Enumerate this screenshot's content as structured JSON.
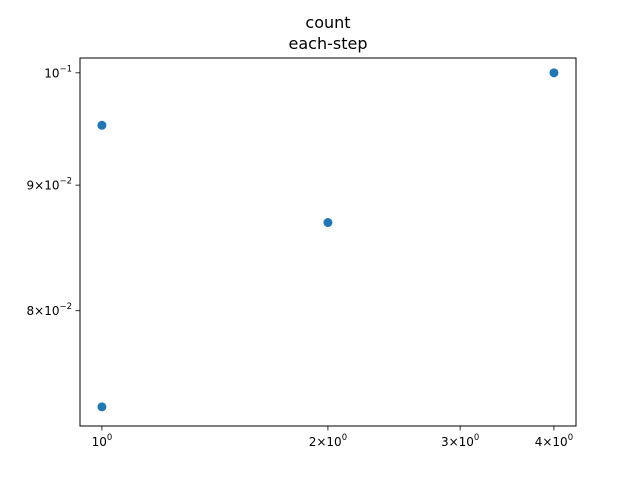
{
  "chart_data": {
    "type": "scatter",
    "title": "count",
    "subtitle": "each-step",
    "xlabel": "",
    "ylabel": "",
    "xscale": "log",
    "yscale": "log",
    "x": [
      1,
      1,
      2,
      4
    ],
    "y": [
      0.0952,
      0.0731,
      0.0869,
      0.1
    ],
    "xlim": [
      0.935,
      4.28
    ],
    "ylim": [
      0.0718,
      0.1014
    ],
    "grid": false,
    "point_color": "#1f77b4",
    "x_ticks": [
      {
        "value": 1,
        "label": "10",
        "exp": "0"
      },
      {
        "value": 2,
        "label": "2×10",
        "exp": "0"
      },
      {
        "value": 3,
        "label": "3×10",
        "exp": "0"
      },
      {
        "value": 4,
        "label": "4×10",
        "exp": "0"
      }
    ],
    "y_ticks": [
      {
        "value": 0.1,
        "label": "10",
        "exp": "−1"
      },
      {
        "value": 0.09,
        "label": "9×10",
        "exp": "−2"
      },
      {
        "value": 0.08,
        "label": "8×10",
        "exp": "−2"
      }
    ]
  }
}
